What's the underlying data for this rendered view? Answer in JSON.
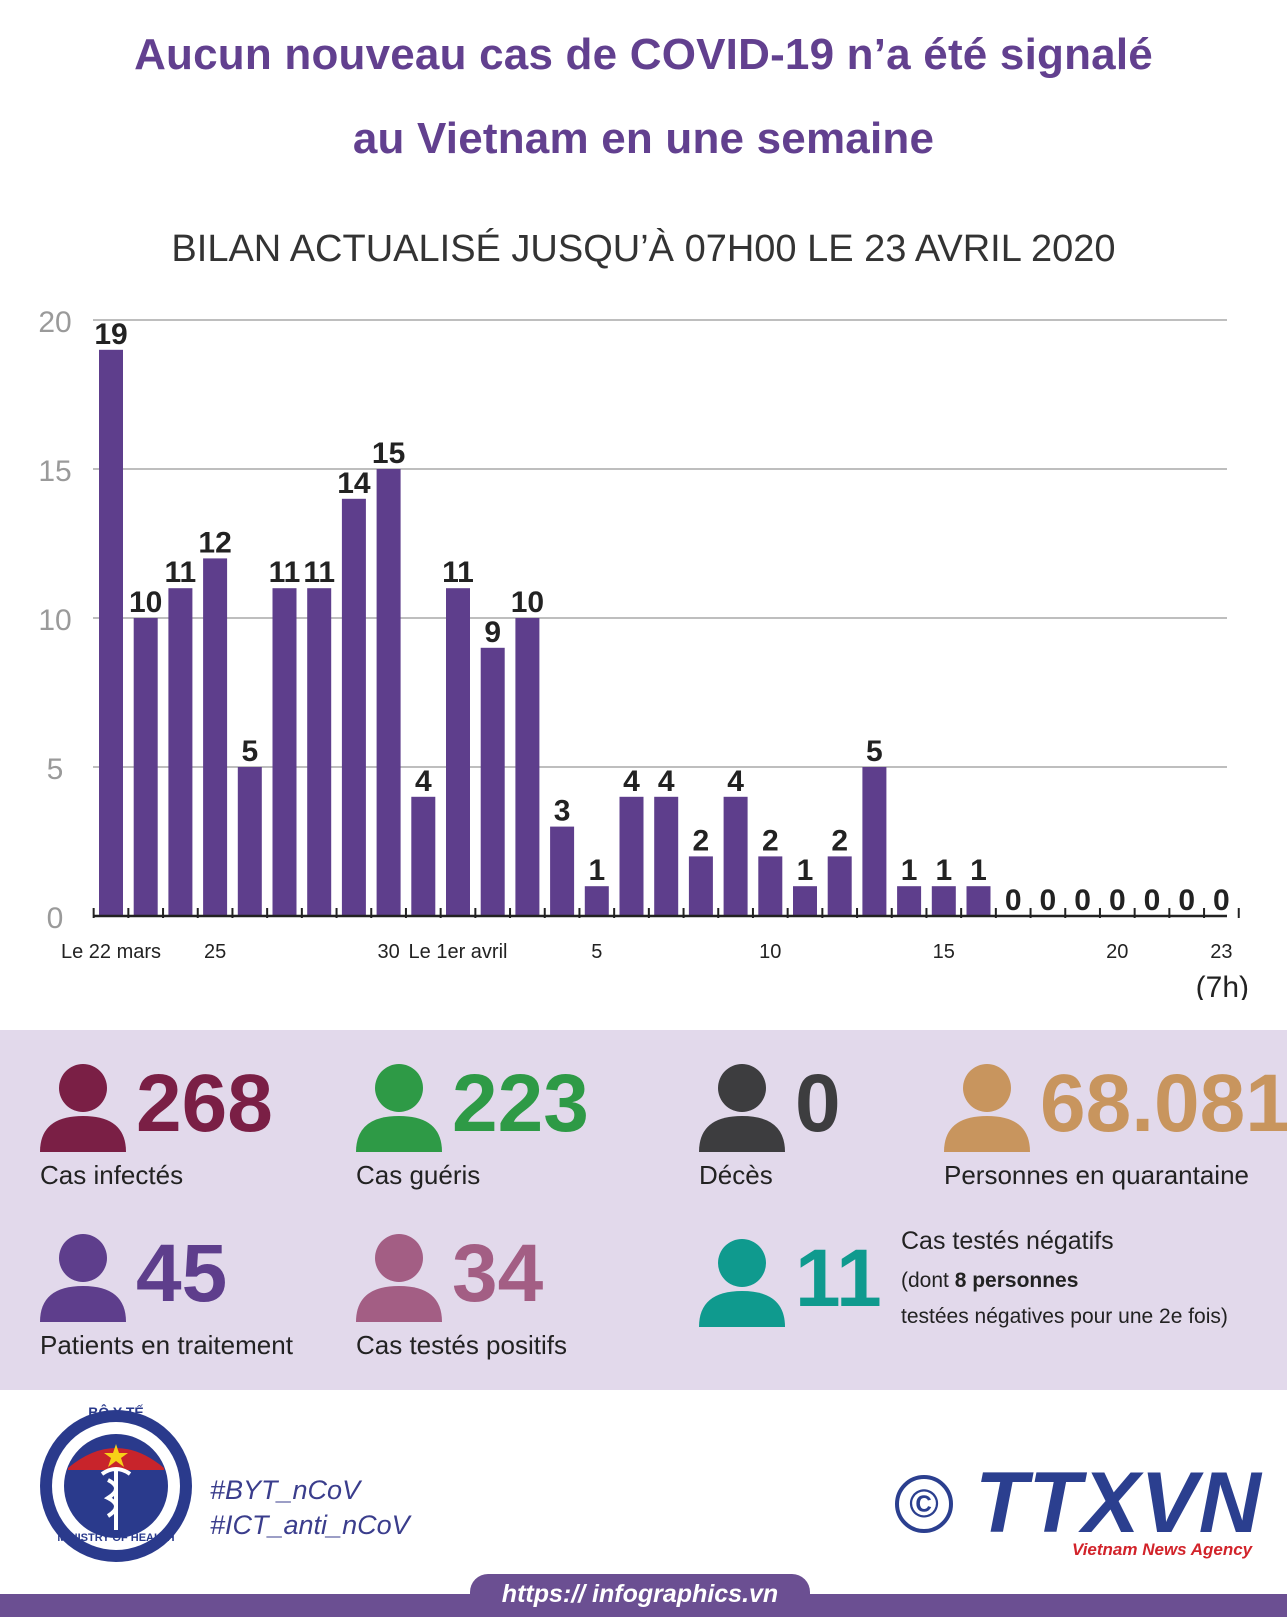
{
  "header": {
    "title_line1": "Aucun nouveau cas de COVID-19 n’a été signalé",
    "title_line2": "au Vietnam en une semaine",
    "subtitle": "BILAN ACTUALISÉ JUSQU’À 07H00 LE 23 AVRIL 2020"
  },
  "chart_data": {
    "type": "bar",
    "title": "",
    "xlabel": "",
    "ylabel": "",
    "ylim": [
      0,
      20
    ],
    "yticks": [
      0,
      5,
      10,
      15,
      20
    ],
    "grid": true,
    "color": "#5e3e8c",
    "values": [
      19,
      10,
      11,
      12,
      5,
      11,
      11,
      14,
      15,
      4,
      11,
      9,
      10,
      3,
      1,
      4,
      4,
      2,
      4,
      2,
      1,
      2,
      5,
      1,
      1,
      1,
      0,
      0,
      0,
      0,
      0,
      0,
      0
    ],
    "x_tick_labels": [
      {
        "index": 0,
        "label": "Le 22 mars"
      },
      {
        "index": 3,
        "label": "25"
      },
      {
        "index": 8,
        "label": "30"
      },
      {
        "index": 10,
        "label": "Le 1er avril"
      },
      {
        "index": 14,
        "label": "5"
      },
      {
        "index": 19,
        "label": "10"
      },
      {
        "index": 24,
        "label": "15"
      },
      {
        "index": 29,
        "label": "20"
      },
      {
        "index": 32,
        "label": "23"
      }
    ],
    "annotation": "(7h)"
  },
  "stats": {
    "infected": {
      "value": "268",
      "label": "Cas infectés",
      "color": "#7a1f45"
    },
    "recovered": {
      "value": "223",
      "label": "Cas guéris",
      "color": "#2e9a46"
    },
    "deaths": {
      "value": "0",
      "label": "Décès",
      "color": "#3d3d3f"
    },
    "quarantine": {
      "value": "68.081",
      "label": "Personnes en quarantaine",
      "color": "#c8955e"
    },
    "treatment": {
      "value": "45",
      "label": "Patients en traitement",
      "color": "#5e3e8c"
    },
    "positive": {
      "value": "34",
      "label": "Cas testés positifs",
      "color": "#a35e84"
    },
    "negative": {
      "value": "11",
      "label_line1": "Cas testés négatifs",
      "label_open": "(dont ",
      "label_bold": "8 personnes",
      "label_line3": "testées négatives pour une 2e fois)",
      "color": "#0f9a8e"
    }
  },
  "footer": {
    "logo_top": "BỘ Y TẾ",
    "logo_bottom": "MINISTRY OF HEALTH",
    "hashtag1": "#BYT_nCoV",
    "hashtag2": "#ICT_anti_nCoV",
    "copyright": "©",
    "agency": "TTXVN",
    "agency_sub": "Vietnam News Agency",
    "url": "https:// infographics.vn"
  }
}
